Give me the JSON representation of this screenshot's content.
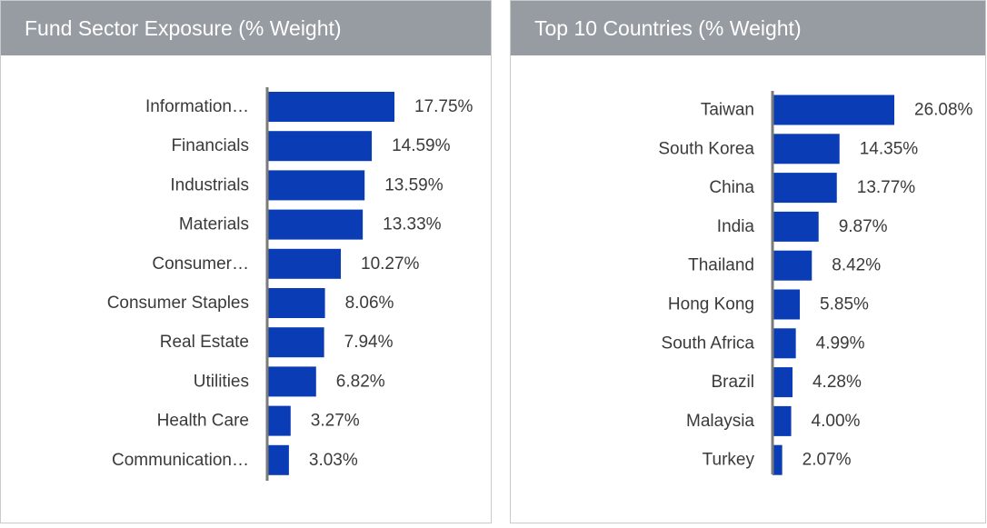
{
  "chart_data": [
    {
      "type": "bar",
      "orientation": "horizontal",
      "title": "Fund Sector Exposure (% Weight)",
      "categories": [
        "Information…",
        "Financials",
        "Industrials",
        "Materials",
        "Consumer…",
        "Consumer Staples",
        "Real Estate",
        "Utilities",
        "Health Care",
        "Communication…"
      ],
      "values": [
        17.75,
        14.59,
        13.59,
        13.33,
        10.27,
        8.06,
        7.94,
        6.82,
        3.27,
        3.03
      ],
      "value_labels": [
        "17.75%",
        "14.59%",
        "13.59%",
        "13.33%",
        "10.27%",
        "8.06%",
        "7.94%",
        "6.82%",
        "3.27%",
        "3.03%"
      ],
      "bar_color": "#0a3db5",
      "grid": false
    },
    {
      "type": "bar",
      "orientation": "horizontal",
      "title": "Top 10 Countries (% Weight)",
      "categories": [
        "Taiwan",
        "South Korea",
        "China",
        "India",
        "Thailand",
        "Hong Kong",
        "South Africa",
        "Brazil",
        "Malaysia",
        "Turkey"
      ],
      "values": [
        26.08,
        14.35,
        13.77,
        9.87,
        8.42,
        5.85,
        4.99,
        4.28,
        4.0,
        2.07
      ],
      "value_labels": [
        "26.08%",
        "14.35%",
        "13.77%",
        "9.87%",
        "8.42%",
        "5.85%",
        "4.99%",
        "4.28%",
        "4.00%",
        "2.07%"
      ],
      "bar_color": "#0a3db5",
      "grid": false
    }
  ],
  "colors": {
    "header_bg": "#979ca2",
    "header_text": "#ffffff",
    "axis": "#7a7a7a",
    "label_text": "#3a3a3a"
  }
}
